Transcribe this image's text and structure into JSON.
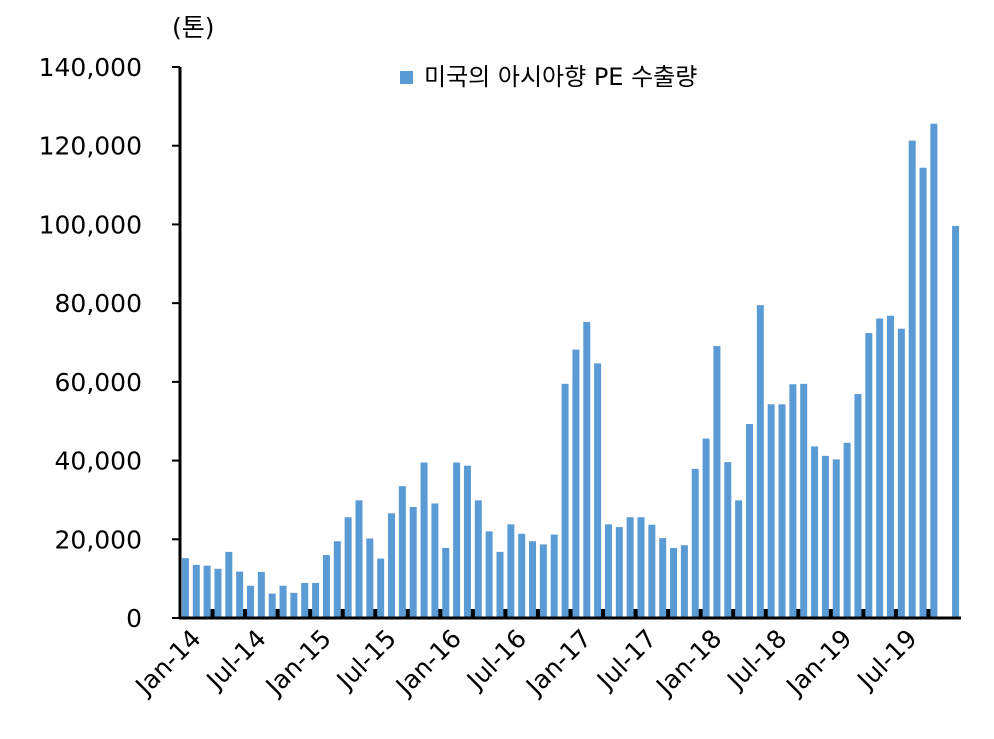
{
  "chart_data": {
    "type": "bar",
    "unit_label": "(톤)",
    "legend": [
      {
        "name": "미국의 아시아향 PE 수출량",
        "color": "#5B9BD5"
      }
    ],
    "legend_placement": "top-center",
    "grid": false,
    "ylim": [
      0,
      140000
    ],
    "yticks": [
      "0",
      "20,000",
      "40,000",
      "60,000",
      "80,000",
      "100,000",
      "120,000",
      "140,000"
    ],
    "x_tick_labels": [
      {
        "label": "Jan-14",
        "index": 0
      },
      {
        "label": "Jul-14",
        "index": 6
      },
      {
        "label": "Jan-15",
        "index": 12
      },
      {
        "label": "Jul-15",
        "index": 18
      },
      {
        "label": "Jan-16",
        "index": 24
      },
      {
        "label": "Jul-16",
        "index": 30
      },
      {
        "label": "Jan-17",
        "index": 36
      },
      {
        "label": "Jul-17",
        "index": 42
      },
      {
        "label": "Jan-18",
        "index": 48
      },
      {
        "label": "Jul-18",
        "index": 54
      },
      {
        "label": "Jan-19",
        "index": 60
      },
      {
        "label": "Jul-19",
        "index": 66
      }
    ],
    "categories": [
      "2014-01",
      "2014-02",
      "2014-03",
      "2014-04",
      "2014-05",
      "2014-06",
      "2014-07",
      "2014-08",
      "2014-09",
      "2014-10",
      "2014-11",
      "2014-12",
      "2015-01",
      "2015-02",
      "2015-03",
      "2015-04",
      "2015-05",
      "2015-06",
      "2015-07",
      "2015-08",
      "2015-09",
      "2015-10",
      "2015-11",
      "2015-12",
      "2016-01",
      "2016-02",
      "2016-03",
      "2016-04",
      "2016-05",
      "2016-06",
      "2016-07",
      "2016-08",
      "2016-09",
      "2016-10",
      "2016-11",
      "2016-12",
      "2017-01",
      "2017-02",
      "2017-03",
      "2017-04",
      "2017-05",
      "2017-06",
      "2017-07",
      "2017-08",
      "2017-09",
      "2017-10",
      "2017-11",
      "2017-12",
      "2018-01",
      "2018-02",
      "2018-03",
      "2018-04",
      "2018-05",
      "2018-06",
      "2018-07",
      "2018-08",
      "2018-09",
      "2018-10",
      "2018-11",
      "2018-12",
      "2019-01",
      "2019-02",
      "2019-03",
      "2019-04",
      "2019-05",
      "2019-06",
      "2019-07",
      "2019-08",
      "2019-09",
      "2019-10",
      "2019-11",
      "2019-12"
    ],
    "series": [
      {
        "name": "미국의 아시아향 PE 수출량",
        "color": "#5B9BD5",
        "values": [
          15200,
          13500,
          13300,
          12500,
          16800,
          11800,
          8200,
          11700,
          6200,
          8200,
          6400,
          8900,
          8900,
          16000,
          19500,
          25600,
          29900,
          20200,
          15100,
          26600,
          33500,
          28200,
          39500,
          29100,
          17800,
          39500,
          38700,
          29900,
          22000,
          16800,
          23800,
          21400,
          19500,
          18700,
          21200,
          59500,
          68200,
          75200,
          64700,
          23800,
          23100,
          25600,
          25600,
          23700,
          20300,
          17800,
          18500,
          37900,
          45600,
          69100,
          39600,
          29900,
          49300,
          79500,
          54300,
          54300,
          59400,
          59500,
          43600,
          41200,
          40300,
          44500,
          56900,
          72400,
          76100,
          76800,
          73500,
          121300,
          114400,
          125600,
          null,
          99600
        ]
      }
    ]
  }
}
